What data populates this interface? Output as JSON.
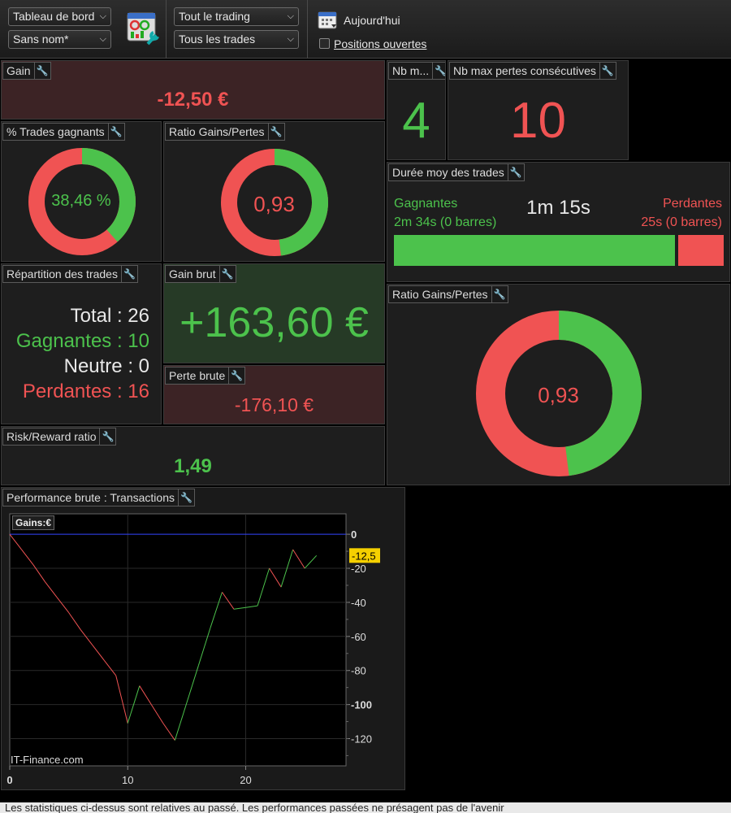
{
  "toolbar": {
    "select1": "Tableau de bord",
    "select2": "Sans nom*",
    "select3": "Tout le trading",
    "select4": "Tous les trades",
    "today": "Aujourd'hui",
    "open_positions": "Positions ouvertes"
  },
  "gain": {
    "title": "Gain",
    "value": "-12,50 €"
  },
  "nb_max_gains": {
    "title": "Nb m...",
    "value": "4"
  },
  "nb_max_losses": {
    "title": "Nb max pertes consécutives",
    "value": "10"
  },
  "pct_win": {
    "title": "% Trades gagnants",
    "value": "38,46 %",
    "fraction": 0.3846
  },
  "ratio_small": {
    "title": "Ratio Gains/Pertes",
    "value": "0,93",
    "fraction": 0.48
  },
  "duration": {
    "title": "Durée moy des trades",
    "win_label": "Gagnantes",
    "win_value": "2m 34s (0 barres)",
    "avg": "1m 15s",
    "loss_label": "Perdantes",
    "loss_value": "25s (0 barres)",
    "win_fraction": 0.86
  },
  "repartition": {
    "title": "Répartition des trades",
    "total": "Total : 26",
    "win": "Gagnantes : 10",
    "neutral": "Neutre : 0",
    "loss": "Perdantes : 16"
  },
  "gain_brut": {
    "title": "Gain brut",
    "value": "+163,60 €"
  },
  "perte_brute": {
    "title": "Perte brute",
    "value": "-176,10 €"
  },
  "risk_reward": {
    "title": "Risk/Reward ratio",
    "value": "1,49"
  },
  "ratio_big": {
    "title": "Ratio Gains/Pertes",
    "value": "0,93",
    "fraction": 0.48
  },
  "perf": {
    "title": "Performance brute : Transactions",
    "legend": "Gains:€",
    "watermark": "IT-Finance.com"
  },
  "colors": {
    "green": "#4cc24c",
    "red": "#f05353"
  },
  "chart_data": {
    "type": "line",
    "x": [
      0,
      1,
      2,
      3,
      4,
      5,
      6,
      7,
      8,
      9,
      10,
      11,
      12,
      13,
      14,
      15,
      16,
      17,
      18,
      19,
      20,
      21,
      22,
      23,
      24,
      25,
      26
    ],
    "y": [
      0,
      -9,
      -18,
      -28,
      -37,
      -46,
      -56,
      -65,
      -74,
      -83,
      -111,
      -89,
      -100,
      -111,
      -121,
      -99,
      -77,
      -55,
      -34,
      -44,
      -43,
      -42,
      -20,
      -31,
      -9,
      -20,
      -12.5
    ],
    "xlim": [
      0,
      28.5
    ],
    "ylim": [
      -136,
      12
    ],
    "xticks": [
      "0",
      "10",
      "20"
    ],
    "yticks": [
      "0",
      "-20",
      "-40",
      "-60",
      "-80",
      "-100",
      "-120"
    ],
    "last_value": "-12,5",
    "grid": true
  },
  "footer": "Les statistiques ci-dessus sont relatives au passé. Les performances passées ne présagent pas de l'avenir"
}
